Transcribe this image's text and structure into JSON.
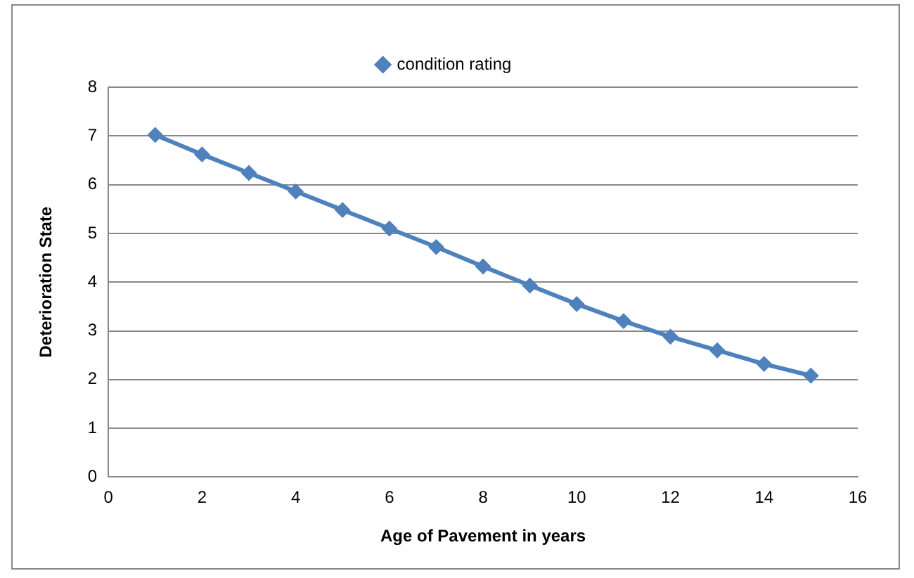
{
  "chart_data": {
    "type": "line",
    "xlabel": "Age of Pavement in years",
    "ylabel": "Deterioration State",
    "x": [
      1,
      2,
      3,
      4,
      5,
      6,
      7,
      8,
      9,
      10,
      11,
      12,
      13,
      14,
      15
    ],
    "series": [
      {
        "name": "condition rating",
        "color": "#4f81bd",
        "values": [
          7.02,
          6.62,
          6.24,
          5.86,
          5.48,
          5.1,
          4.72,
          4.32,
          3.93,
          3.55,
          3.2,
          2.88,
          2.6,
          2.32,
          2.08
        ]
      }
    ],
    "xlim": [
      0,
      16
    ],
    "xticks": [
      0,
      2,
      4,
      6,
      8,
      10,
      12,
      14,
      16
    ],
    "ylim": [
      0,
      8
    ],
    "yticks": [
      0,
      1,
      2,
      3,
      4,
      5,
      6,
      7,
      8
    ],
    "grid": "y",
    "legend": "top",
    "marker": "diamond",
    "line_style": "solid"
  }
}
